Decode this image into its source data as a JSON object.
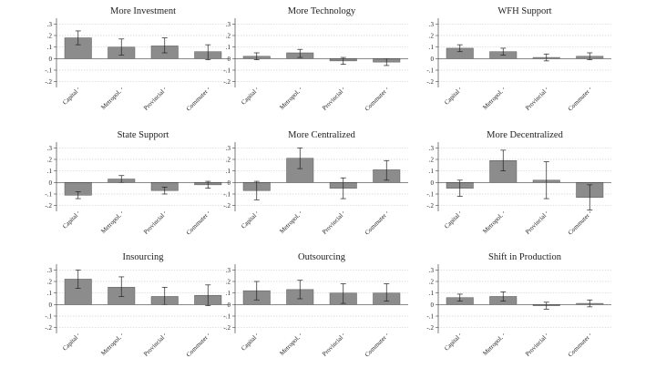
{
  "colors": {
    "bar": "#8c8c8c",
    "bar_stroke": "#555555",
    "grid": "#cfcfcf",
    "axis": "#444444",
    "error": "#222222"
  },
  "chart_data": [
    {
      "type": "bar",
      "title": "More Investment",
      "categories": [
        "Capital",
        "Metropol.",
        "Provincial",
        "Commuter"
      ],
      "values": [
        0.18,
        0.1,
        0.11,
        0.06
      ],
      "ci_low": [
        0.12,
        0.03,
        0.05,
        -0.01
      ],
      "ci_high": [
        0.24,
        0.17,
        0.18,
        0.12
      ],
      "yticks": [
        ".3",
        ".2",
        ".1",
        "0",
        "-.1",
        "-.2"
      ],
      "ylim": [
        -0.25,
        0.35
      ],
      "grid": true
    },
    {
      "type": "bar",
      "title": "More Technology",
      "categories": [
        "Capital",
        "Metropol.",
        "Provincial",
        "Commuter"
      ],
      "values": [
        0.02,
        0.05,
        -0.02,
        -0.03
      ],
      "ci_low": [
        -0.01,
        0.01,
        -0.05,
        -0.06
      ],
      "ci_high": [
        0.05,
        0.08,
        0.01,
        0.0
      ],
      "yticks": [
        ".3",
        ".2",
        ".1",
        "0",
        "-.1",
        "-.2"
      ],
      "ylim": [
        -0.25,
        0.35
      ],
      "grid": true
    },
    {
      "type": "bar",
      "title": "WFH Support",
      "categories": [
        "Capital",
        "Metropol.",
        "Provincial",
        "Commuter"
      ],
      "values": [
        0.09,
        0.06,
        0.01,
        0.02
      ],
      "ci_low": [
        0.06,
        0.03,
        -0.02,
        -0.01
      ],
      "ci_high": [
        0.12,
        0.09,
        0.04,
        0.05
      ],
      "yticks": [
        ".3",
        ".2",
        ".1",
        "0",
        "-.1",
        "-.2"
      ],
      "ylim": [
        -0.25,
        0.35
      ],
      "grid": true
    },
    {
      "type": "bar",
      "title": "State Support",
      "categories": [
        "Capital",
        "Metropol.",
        "Provincial",
        "Commuter"
      ],
      "values": [
        -0.11,
        0.03,
        -0.07,
        -0.02
      ],
      "ci_low": [
        -0.14,
        0.0,
        -0.1,
        -0.05
      ],
      "ci_high": [
        -0.08,
        0.06,
        -0.04,
        0.01
      ],
      "yticks": [
        ".3",
        ".2",
        ".1",
        "0",
        "-.1",
        "-.2"
      ],
      "ylim": [
        -0.25,
        0.35
      ],
      "grid": true
    },
    {
      "type": "bar",
      "title": "More Centralized",
      "categories": [
        "Capital",
        "Metropol.",
        "Provincial",
        "Commuter"
      ],
      "values": [
        -0.07,
        0.21,
        -0.05,
        0.11
      ],
      "ci_low": [
        -0.15,
        0.12,
        -0.14,
        0.02
      ],
      "ci_high": [
        0.01,
        0.3,
        0.04,
        0.19
      ],
      "yticks": [
        ".3",
        ".2",
        ".1",
        "0",
        "-.1",
        "-.2"
      ],
      "ylim": [
        -0.25,
        0.35
      ],
      "grid": true
    },
    {
      "type": "bar",
      "title": "More Decentralized",
      "categories": [
        "Capital",
        "Metropol.",
        "Provincial",
        "Commuter"
      ],
      "values": [
        -0.05,
        0.19,
        0.02,
        -0.13
      ],
      "ci_low": [
        -0.12,
        0.1,
        -0.14,
        -0.24
      ],
      "ci_high": [
        0.02,
        0.28,
        0.18,
        -0.02
      ],
      "yticks": [
        ".3",
        ".2",
        ".1",
        "0",
        "-.1",
        "-.2"
      ],
      "ylim": [
        -0.25,
        0.35
      ],
      "grid": true
    },
    {
      "type": "bar",
      "title": "Insourcing",
      "categories": [
        "Capital",
        "Metropol.",
        "Provincial",
        "Commuter"
      ],
      "values": [
        0.22,
        0.15,
        0.07,
        0.08
      ],
      "ci_low": [
        0.14,
        0.07,
        0.0,
        -0.01
      ],
      "ci_high": [
        0.3,
        0.24,
        0.15,
        0.17
      ],
      "yticks": [
        ".3",
        ".2",
        ".1",
        "0",
        "-.1",
        "-.2"
      ],
      "ylim": [
        -0.25,
        0.35
      ],
      "grid": true
    },
    {
      "type": "bar",
      "title": "Outsourcing",
      "categories": [
        "Capital",
        "Metropol.",
        "Provincial",
        "Commuter"
      ],
      "values": [
        0.12,
        0.13,
        0.1,
        0.1
      ],
      "ci_low": [
        0.04,
        0.05,
        0.01,
        0.03
      ],
      "ci_high": [
        0.2,
        0.21,
        0.18,
        0.18
      ],
      "yticks": [
        ".3",
        ".2",
        ".1",
        "0",
        "-.1",
        "-.2"
      ],
      "ylim": [
        -0.25,
        0.35
      ],
      "grid": true
    },
    {
      "type": "bar",
      "title": "Shift in Production",
      "categories": [
        "Capital",
        "Metropol.",
        "Provincial",
        "Commuter"
      ],
      "values": [
        0.06,
        0.07,
        -0.01,
        0.01
      ],
      "ci_low": [
        0.03,
        0.03,
        -0.04,
        -0.02
      ],
      "ci_high": [
        0.09,
        0.11,
        0.02,
        0.04
      ],
      "yticks": [
        ".3",
        ".2",
        ".1",
        "0",
        "-.1",
        "-.2"
      ],
      "ylim": [
        -0.25,
        0.35
      ],
      "grid": true
    }
  ]
}
